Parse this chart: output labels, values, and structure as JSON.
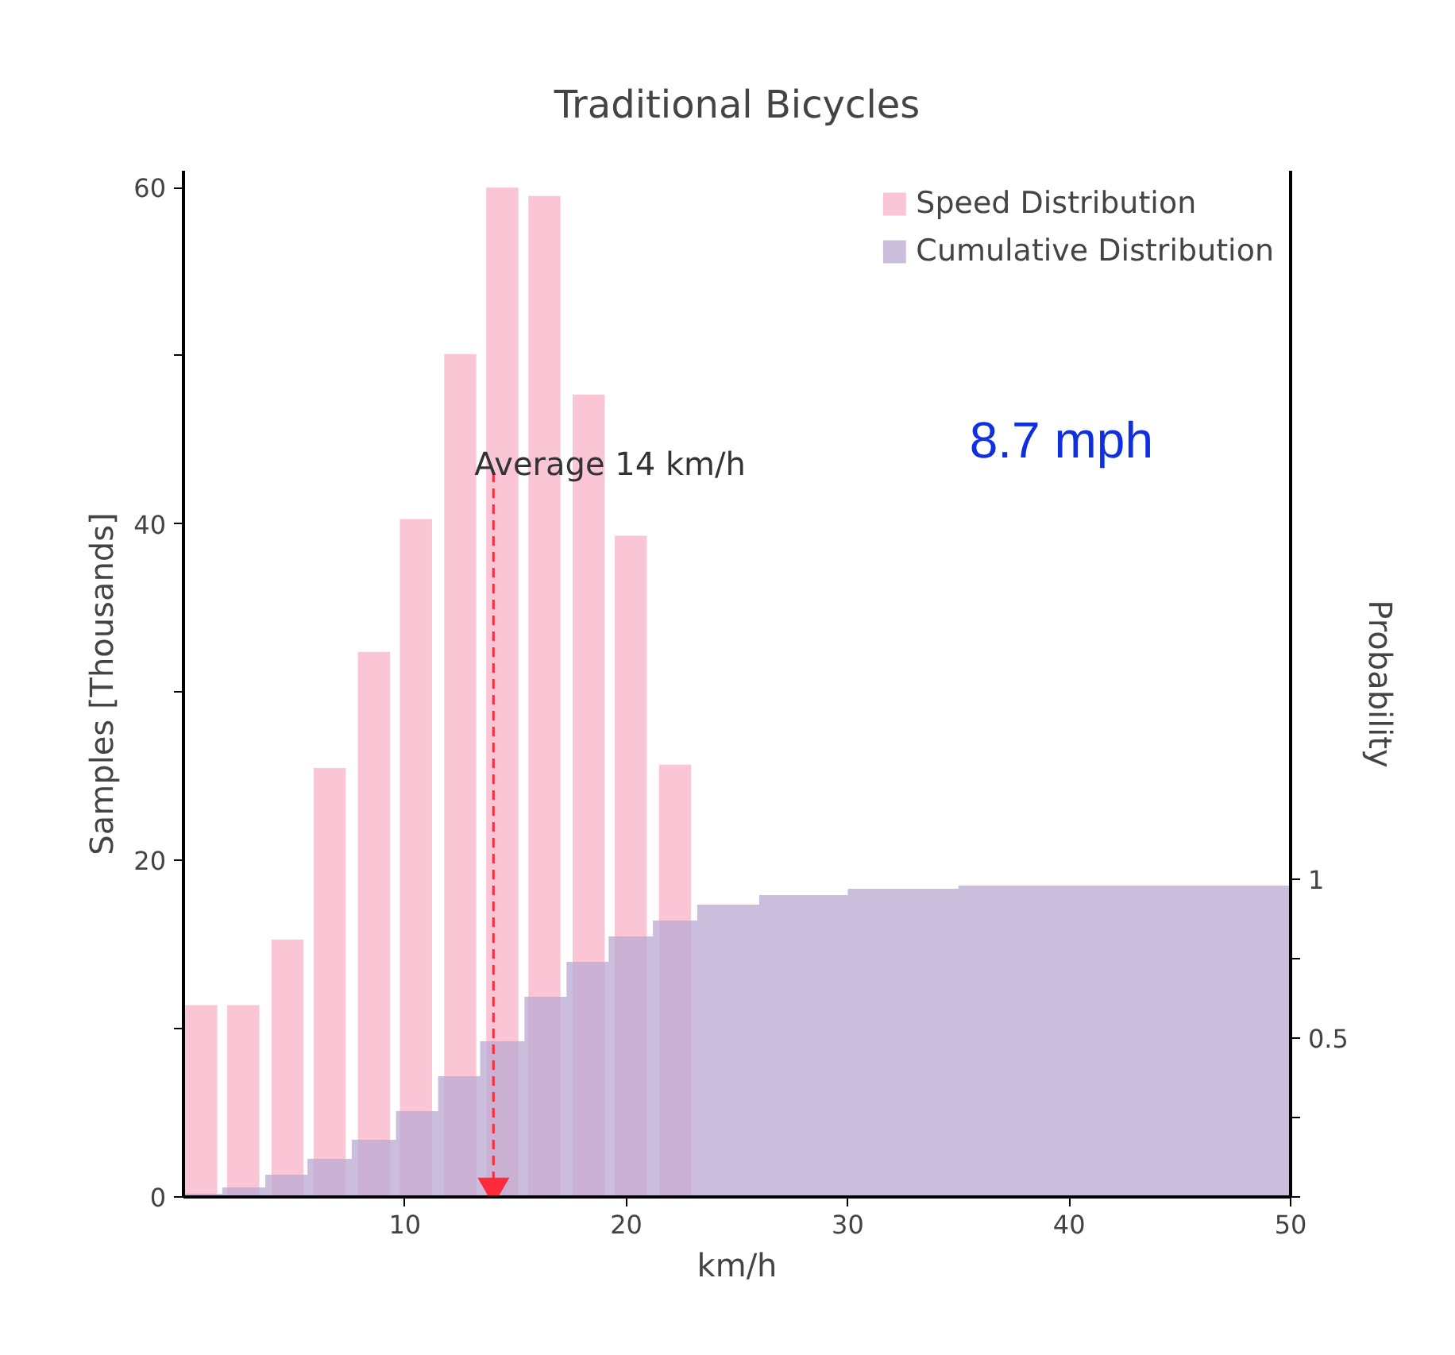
{
  "chart_data": {
    "type": "bar",
    "title": "Traditional Bicycles",
    "xlabel": "km/h",
    "ylabel": "Samples [Thousands]",
    "y2label": "Probability",
    "series": [
      {
        "name": "Speed Distribution",
        "color": "#f9bfd0",
        "x": [
          0.8,
          2.7,
          4.7,
          6.6,
          8.6,
          10.5,
          12.5,
          14.4,
          16.3,
          18.3,
          20.2,
          22.2
        ],
        "values": [
          11.4,
          11.4,
          15.3,
          25.5,
          32.4,
          40.3,
          50.1,
          60,
          59.5,
          47.7,
          39.3,
          25.7
        ]
      },
      {
        "name": "Cumulative Distribution",
        "type": "area",
        "axis": "y2",
        "color": "#b9a8d2",
        "x": [
          0,
          1.75,
          1.75,
          3.7,
          3.7,
          5.6,
          5.6,
          7.6,
          7.6,
          9.6,
          9.6,
          11.5,
          11.5,
          13.4,
          13.4,
          15.4,
          15.4,
          17.3,
          17.3,
          19.2,
          19.2,
          21.2,
          21.2,
          23.2,
          23.2,
          26,
          26,
          30,
          30,
          35,
          35,
          50
        ],
        "values": [
          0.01,
          0.01,
          0.03,
          0.03,
          0.07,
          0.07,
          0.12,
          0.12,
          0.18,
          0.18,
          0.27,
          0.27,
          0.38,
          0.38,
          0.49,
          0.49,
          0.63,
          0.63,
          0.74,
          0.74,
          0.82,
          0.82,
          0.87,
          0.87,
          0.92,
          0.92,
          0.95,
          0.95,
          0.97,
          0.97,
          0.98,
          0.98
        ]
      },
      {
        "type": "scatter",
        "marker": "triangle",
        "color": "#ff2a3a",
        "x": [
          14
        ],
        "values": [
          0.6
        ]
      }
    ],
    "xlim": [
      0,
      50
    ],
    "xticks": [
      10,
      20,
      30,
      40,
      50
    ],
    "ylim": [
      0,
      61
    ],
    "yticks": [
      0,
      {
        "value": 10,
        "label": null
      },
      20,
      {
        "value": 30,
        "label": null
      },
      40,
      {
        "value": 50,
        "label": null
      },
      60
    ],
    "y2lim": [
      0,
      3.23
    ],
    "y2ticks": [
      {
        "value": 0,
        "label": null
      },
      {
        "value": 0.25,
        "label": null
      },
      0.5,
      {
        "value": 0.75,
        "label": null
      },
      1
    ],
    "ref_lines": [
      {
        "axis": "x",
        "value": 14,
        "color": "#ff2a3a",
        "line_style": "dashed"
      }
    ],
    "annotations": [
      {
        "text": "Average 14 km/h",
        "x": 14,
        "y": 43
      },
      "8.7 mph"
    ],
    "legend": "top right",
    "grid": false
  }
}
